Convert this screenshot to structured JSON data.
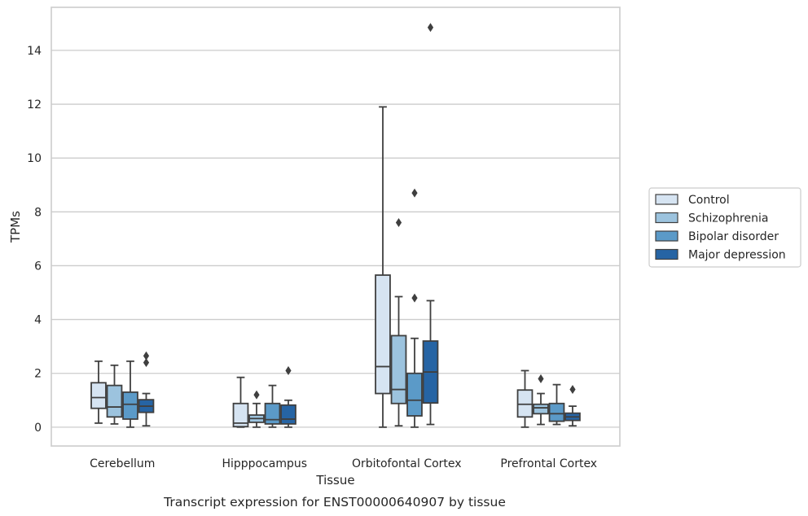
{
  "caption": "Transcript expression for ENST00000640907 by tissue",
  "chart_data": {
    "type": "box",
    "xlabel": "Tissue",
    "ylabel": "TPMs",
    "ylim": [
      -0.7,
      15.6
    ],
    "yticks": [
      0,
      2,
      4,
      6,
      8,
      10,
      12,
      14
    ],
    "grid": "horizontal",
    "legend_position": "right",
    "categories": [
      "Cerebellum",
      "Hipppocampus",
      "Orbitofontal Cortex",
      "Prefrontal Cortex"
    ],
    "series": [
      {
        "name": "Control",
        "color": "#d6e4f2",
        "boxes": [
          {
            "whisker_low": 0.15,
            "q1": 0.7,
            "median": 1.1,
            "q3": 1.65,
            "whisker_high": 2.45,
            "outliers": []
          },
          {
            "whisker_low": 0.0,
            "q1": 0.02,
            "median": 0.15,
            "q3": 0.88,
            "whisker_high": 1.85,
            "outliers": []
          },
          {
            "whisker_low": 0.0,
            "q1": 1.25,
            "median": 2.25,
            "q3": 5.65,
            "whisker_high": 11.9,
            "outliers": []
          },
          {
            "whisker_low": 0.0,
            "q1": 0.38,
            "median": 0.85,
            "q3": 1.38,
            "whisker_high": 2.1,
            "outliers": []
          }
        ]
      },
      {
        "name": "Schizophrenia",
        "color": "#9cc3de",
        "boxes": [
          {
            "whisker_low": 0.12,
            "q1": 0.38,
            "median": 0.75,
            "q3": 1.55,
            "whisker_high": 2.3,
            "outliers": []
          },
          {
            "whisker_low": 0.0,
            "q1": 0.18,
            "median": 0.32,
            "q3": 0.45,
            "whisker_high": 0.88,
            "outliers": [
              1.2
            ]
          },
          {
            "whisker_low": 0.05,
            "q1": 0.88,
            "median": 1.4,
            "q3": 3.4,
            "whisker_high": 4.85,
            "outliers": [
              7.6
            ]
          },
          {
            "whisker_low": 0.1,
            "q1": 0.5,
            "median": 0.72,
            "q3": 0.85,
            "whisker_high": 1.25,
            "outliers": [
              1.8
            ]
          }
        ]
      },
      {
        "name": "Bipolar disorder",
        "color": "#5b9ac8",
        "boxes": [
          {
            "whisker_low": 0.0,
            "q1": 0.3,
            "median": 0.85,
            "q3": 1.3,
            "whisker_high": 2.45,
            "outliers": []
          },
          {
            "whisker_low": 0.0,
            "q1": 0.12,
            "median": 0.28,
            "q3": 0.88,
            "whisker_high": 1.55,
            "outliers": []
          },
          {
            "whisker_low": 0.0,
            "q1": 0.42,
            "median": 1.0,
            "q3": 2.0,
            "whisker_high": 3.3,
            "outliers": [
              4.8,
              8.7
            ]
          },
          {
            "whisker_low": 0.1,
            "q1": 0.22,
            "median": 0.5,
            "q3": 0.88,
            "whisker_high": 1.58,
            "outliers": []
          }
        ]
      },
      {
        "name": "Major depression",
        "color": "#2664a4",
        "boxes": [
          {
            "whisker_low": 0.05,
            "q1": 0.55,
            "median": 0.78,
            "q3": 1.02,
            "whisker_high": 1.25,
            "outliers": [
              2.4,
              2.65
            ]
          },
          {
            "whisker_low": 0.0,
            "q1": 0.12,
            "median": 0.3,
            "q3": 0.82,
            "whisker_high": 1.0,
            "outliers": [
              2.1
            ]
          },
          {
            "whisker_low": 0.1,
            "q1": 0.9,
            "median": 2.05,
            "q3": 3.2,
            "whisker_high": 4.7,
            "outliers": [
              14.85
            ]
          },
          {
            "whisker_low": 0.05,
            "q1": 0.25,
            "median": 0.38,
            "q3": 0.52,
            "whisker_high": 0.78,
            "outliers": [
              1.4
            ]
          }
        ]
      }
    ]
  }
}
